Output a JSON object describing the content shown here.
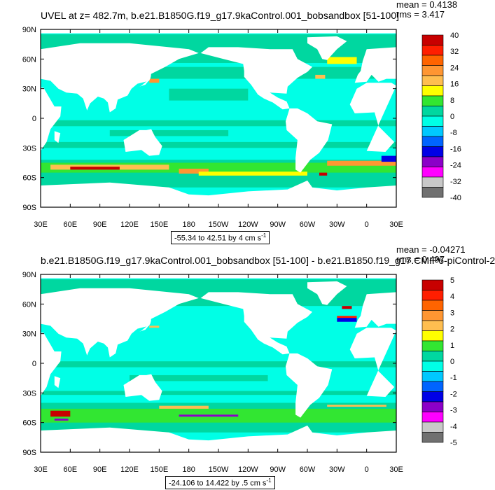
{
  "chart_data": [
    {
      "type": "heatmap",
      "title": "UVEL at z= 482.7m, b.e21.B1850G.f19_g17.9kaControl.001_bobsandbox [51-100]",
      "stats": {
        "mean": "mean = 0.4138",
        "rms": "rms = 3.417"
      },
      "range_label": "-55.34 to 42.51 by 4 cm s",
      "range_unit_exp": "-1",
      "x_ticks": [
        "30E",
        "60E",
        "90E",
        "120E",
        "150E",
        "180",
        "150W",
        "120W",
        "90W",
        "60W",
        "30W",
        "0",
        "30E"
      ],
      "y_ticks": [
        "90N",
        "60N",
        "30N",
        "0",
        "30S",
        "60S",
        "90S"
      ],
      "colorbar_labels": [
        "40",
        "32",
        "24",
        "16",
        "8",
        "0",
        "-8",
        "-16",
        "-24",
        "-32",
        "-40"
      ],
      "colorbar_colors": [
        "#c80000",
        "#ff1e00",
        "#ff6400",
        "#ff9632",
        "#ffbe50",
        "#ffff00",
        "#32e632",
        "#00d7a0",
        "#00ffe6",
        "#00c8ff",
        "#0064ff",
        "#0000e6",
        "#8c00c8",
        "#ff00ff",
        "#c8c8c8",
        "#707070"
      ]
    },
    {
      "type": "heatmap",
      "title": "b.e21.B1850G.f19_g17.9kaControl.001_bobsandbox [51-100] - b.e21.B1850.f19_g17.CMIP6-piControl-2",
      "stats": {
        "mean": "mean = -0.04271",
        "rms": "rms = 0.497"
      },
      "range_label": "-24.106 to 14.422 by .5 cm s",
      "range_unit_exp": "-1",
      "x_ticks": [
        "30E",
        "60E",
        "90E",
        "120E",
        "150E",
        "180",
        "150W",
        "120W",
        "90W",
        "60W",
        "30W",
        "0",
        "30E"
      ],
      "y_ticks": [
        "90N",
        "60N",
        "30N",
        "0",
        "30S",
        "60S",
        "90S"
      ],
      "colorbar_labels": [
        "5",
        "4",
        "3",
        "2",
        "1",
        "0",
        "-1",
        "-2",
        "-3",
        "-4",
        "-5"
      ],
      "colorbar_colors": [
        "#c80000",
        "#ff1e00",
        "#ff6400",
        "#ff9632",
        "#ffbe50",
        "#ffff00",
        "#32e632",
        "#00d7a0",
        "#00ffe6",
        "#00c8ff",
        "#0064ff",
        "#0000e6",
        "#8c00c8",
        "#ff00ff",
        "#c8c8c8",
        "#707070"
      ]
    }
  ],
  "palette": {
    "ocean_main": "#00ffe6",
    "ocean_alt": "#00d7a0",
    "band_green": "#32e632",
    "land": "#ffffff"
  }
}
